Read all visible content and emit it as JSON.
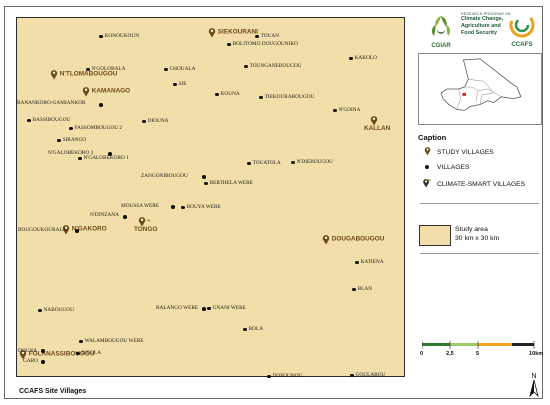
{
  "map": {
    "title": "CCAFS Site Villages",
    "colors": {
      "study_area": "#f1dea8",
      "study_label": "#6e4a17",
      "village_dot": "#111111"
    },
    "study_villages": [
      {
        "name": "SIEKOURANI"
      },
      {
        "name": "N'TLOMABOUGOU"
      },
      {
        "name": "KAMANAGO"
      },
      {
        "name": "KALLAN"
      },
      {
        "name": "TONGO"
      },
      {
        "name": "N'GAKORO"
      },
      {
        "name": "DOUGABOUGOU"
      },
      {
        "name": "FOLANASSIBOUGOU"
      }
    ],
    "villages": [
      "KONOUKOUN",
      "TOUAN",
      "BOLITOMO DOUGOUNIKO",
      "KAKOLO",
      "N'GOLOBALA",
      "CHOUALA",
      "TOUNGANEBOUGOU",
      "SIE",
      "BANANKORO-GAMIANKOR",
      "KOUNA",
      "TIEKOURABOUGOU",
      "N'GOINA",
      "BASSIBOUGOU",
      "DIOUNA",
      "FASSOMBOUGOU 2",
      "SIRANGO",
      "N'GALOBEKORO 2",
      "N'GALOBEKORO 1",
      "TOUATOLA",
      "N'DIEBOUGOU",
      "ZANGONIBOUGOU",
      "BERTHELA WERE",
      "MOUSSA WERE",
      "BOUYA WERE",
      "N'DINZANA",
      "BOUGOUKOURALA",
      "KATIENA",
      "BLAN",
      "NABOUGOU",
      "BALANGO WERE",
      "GNANI WERE",
      "BOLA",
      "WALAMBOUGOU WERE",
      "DOUNA",
      "N'GOLA",
      "GARO",
      "DOFOUNOU",
      "GOULABOU"
    ]
  },
  "logos": {
    "cgiar": "CGIAR",
    "program_lines": [
      "RESEARCH PROGRAM ON",
      "Climate Change,",
      "Agriculture and",
      "Food Security"
    ],
    "ccafs": "CCAFS"
  },
  "legend": {
    "heading": "Caption",
    "items": [
      {
        "icon": "study-pin-icon",
        "label": "STUDY VILLAGES"
      },
      {
        "icon": "village-dot-icon",
        "label": "VILLAGES"
      },
      {
        "icon": "climate-smart-pin-icon",
        "label": "CLIMATE-SMART VILLAGES"
      }
    ],
    "study_area_lines": [
      "Study area",
      "30 km x 30 km"
    ]
  },
  "scale_bar": {
    "ticks": [
      "0",
      "2,5",
      "5",
      "10km"
    ],
    "colors": [
      "#2e7d32",
      "#9ccc65",
      "#f4a11f",
      "#222222"
    ]
  },
  "north_arrow": "N"
}
